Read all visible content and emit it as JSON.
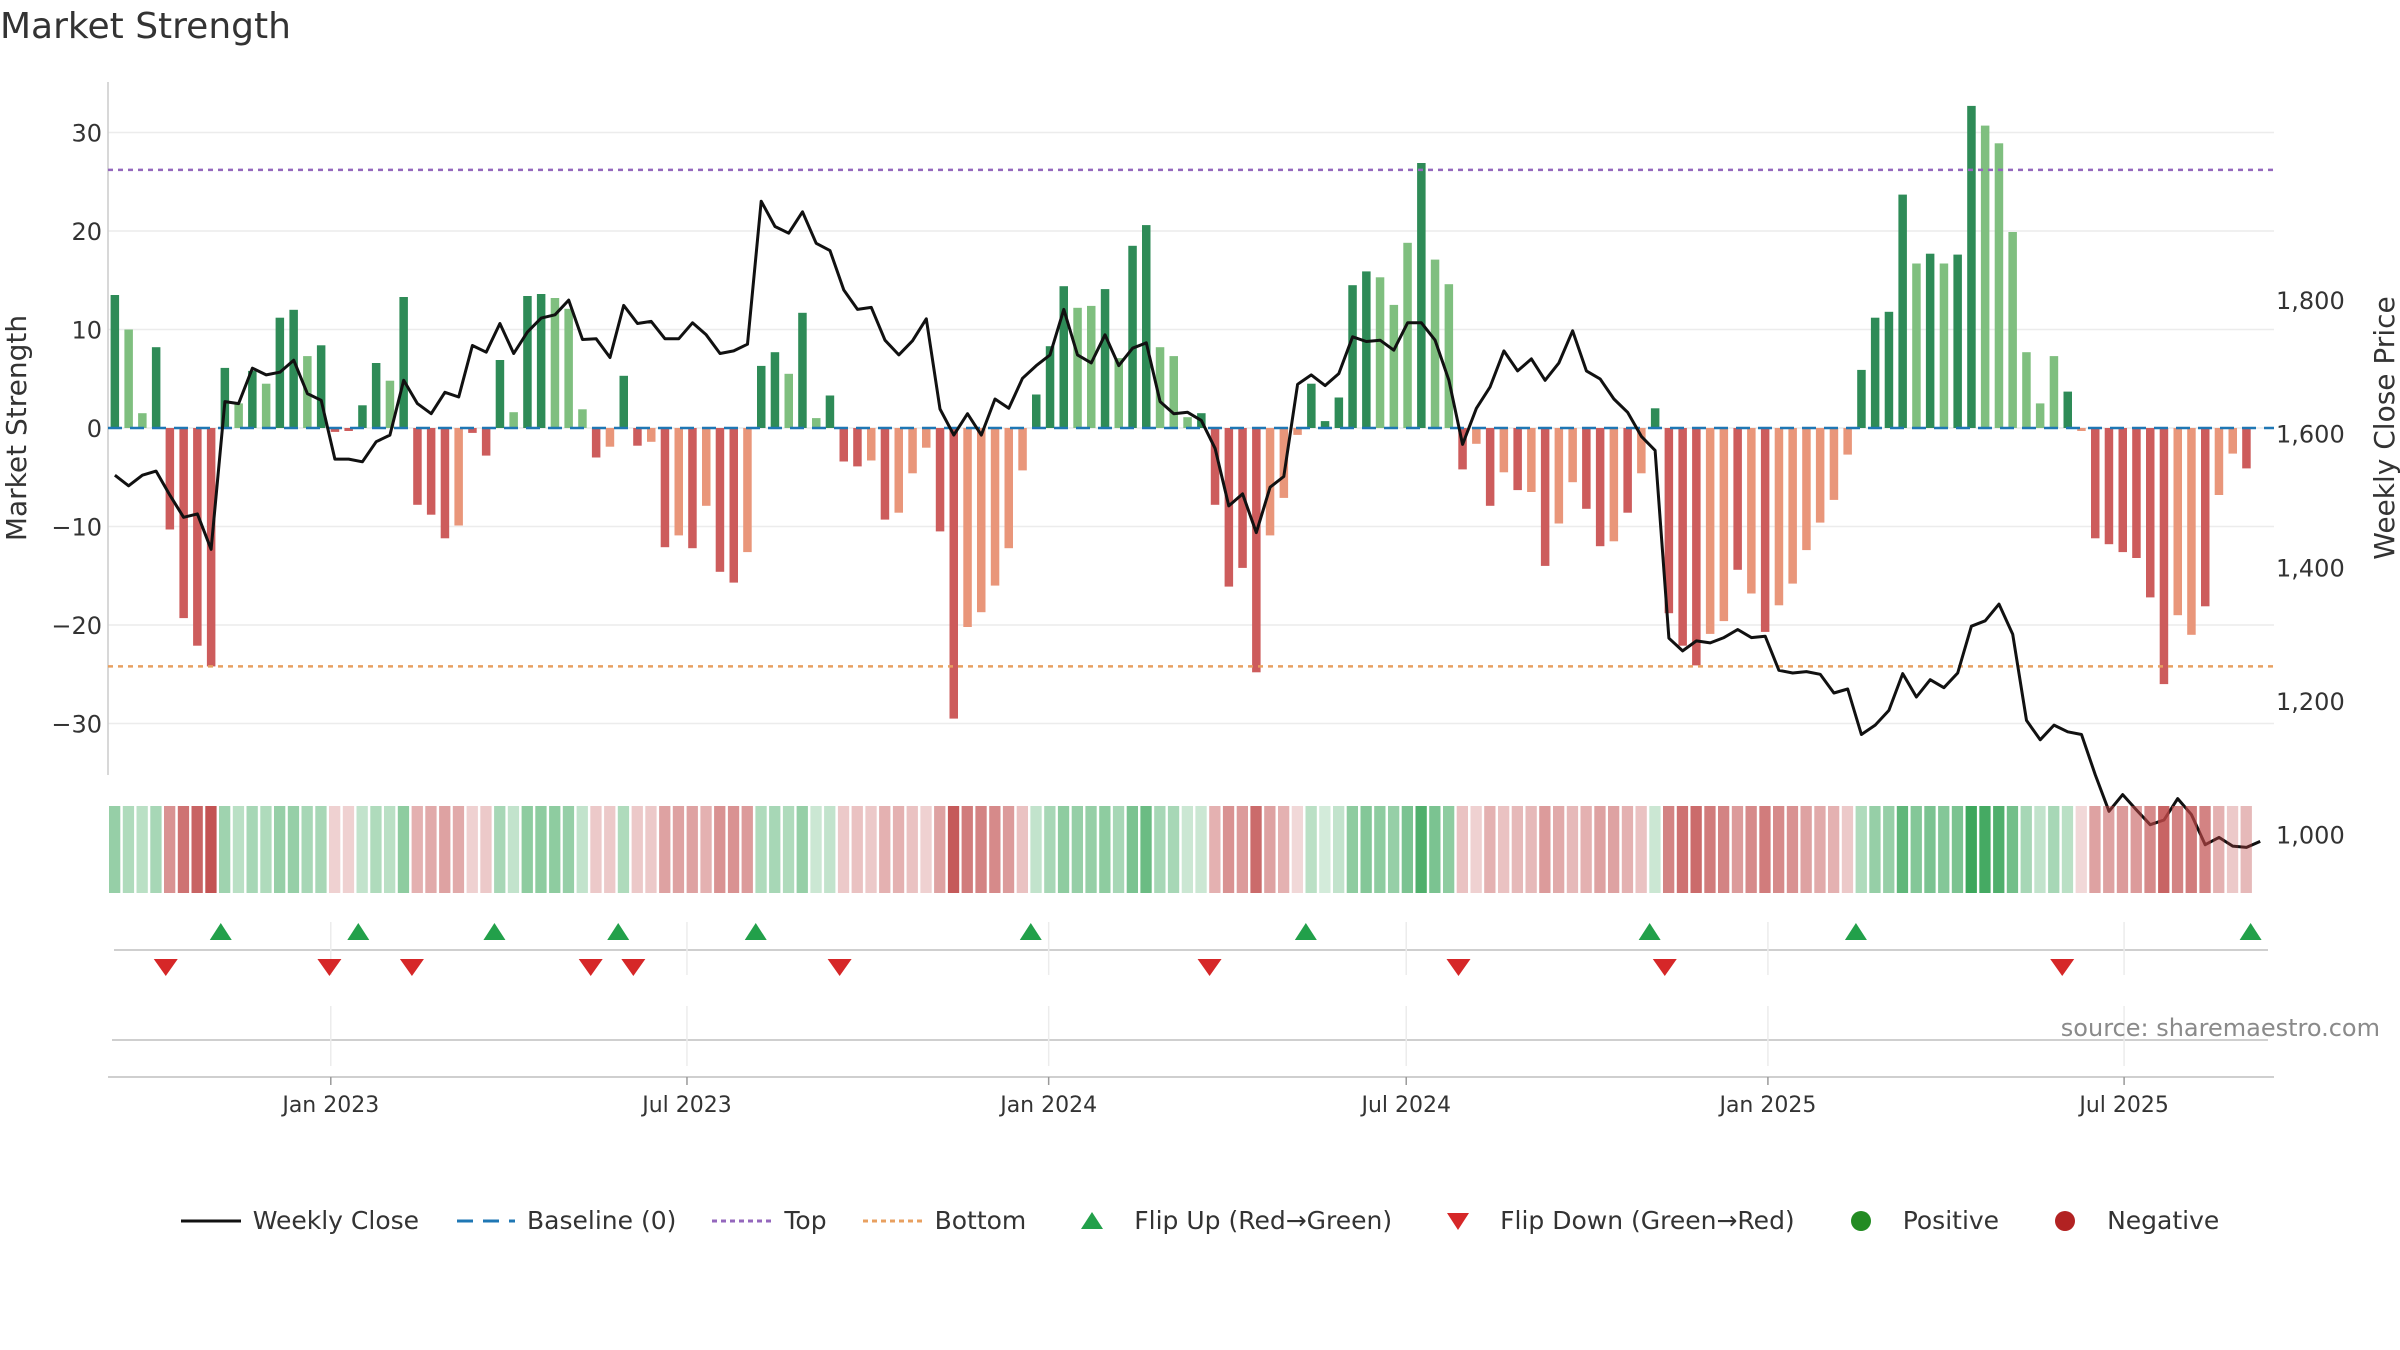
{
  "title": "Market Strength",
  "source": "source: sharemaestro.com",
  "colors": {
    "strong_green": "#2e8b57",
    "light_green": "#7fbf7f",
    "strong_red": "#cd5c5c",
    "light_red": "#e9967a",
    "top_line": "#9467bd",
    "bottom_line": "#e8a060",
    "baseline": "#1f77b4",
    "close_line": "#111111",
    "flip_up": "#22a04a",
    "flip_down": "#d62728",
    "positive": "#228b22",
    "negative": "#b22222"
  },
  "legend": [
    {
      "label": "Weekly Close",
      "kind": "line",
      "key": "close"
    },
    {
      "label": "Baseline (0)",
      "kind": "dash",
      "key": "baseline"
    },
    {
      "label": "Top",
      "kind": "dot",
      "key": "top"
    },
    {
      "label": "Bottom",
      "kind": "dot",
      "key": "bottom"
    },
    {
      "label": "Flip Up (Red→Green)",
      "kind": "tri-up",
      "key": "flip_up"
    },
    {
      "label": "Flip Down (Green→Red)",
      "kind": "tri-down",
      "key": "flip_down"
    },
    {
      "label": "Positive",
      "kind": "circle",
      "key": "positive"
    },
    {
      "label": "Negative",
      "kind": "circle",
      "key": "negative"
    }
  ],
  "chart_data": {
    "type": "bar",
    "title": "Market Strength",
    "ylabel": "Market Strength",
    "y2label": "Weekly Close Price",
    "ylim": [
      -35,
      36
    ],
    "y2lim": [
      940,
      1980
    ],
    "yticks": [
      30,
      20,
      10,
      0,
      -10,
      -20,
      -30
    ],
    "ytick_labels": [
      "30",
      "20",
      "10",
      "0",
      "−10",
      "−20",
      "−30"
    ],
    "y2ticks": [
      1800,
      1600,
      1400,
      1200,
      1000
    ],
    "y2tick_labels": [
      "1,800",
      "1,600",
      "1,400",
      "1,200",
      "1,000"
    ],
    "top_level": 26.2,
    "bottom_level": -24.2,
    "x_range_weeks": [
      0,
      157.5
    ],
    "x_ticks": [
      {
        "label": "Jan 2023",
        "week": 16.2
      },
      {
        "label": "Jul 2023",
        "week": 42.1
      },
      {
        "label": "Jan 2024",
        "week": 68.4
      },
      {
        "label": "Jul 2024",
        "week": 94.4
      },
      {
        "label": "Jan 2025",
        "week": 120.7
      },
      {
        "label": "Jul 2025",
        "week": 146.6
      }
    ],
    "strength": [
      13.5,
      10,
      1.5,
      8.2,
      -10.3,
      -19.3,
      -22.1,
      -24.2,
      6.1,
      2.5,
      5.8,
      4.5,
      11.2,
      12,
      7.3,
      8.4,
      -0.4,
      -0.3,
      2.3,
      6.6,
      4.8,
      13.3,
      -7.8,
      -8.8,
      -11.2,
      -9.9,
      -0.5,
      -2.8,
      6.9,
      1.6,
      13.4,
      13.6,
      13.2,
      12.1,
      1.9,
      -3,
      -1.9,
      5.3,
      -1.8,
      -1.4,
      -12.1,
      -10.9,
      -12.2,
      -7.9,
      -14.6,
      -15.7,
      -12.6,
      6.3,
      7.7,
      5.5,
      11.7,
      1,
      3.3,
      -3.4,
      -3.9,
      -3.3,
      -9.3,
      -8.6,
      -4.6,
      -2,
      -10.5,
      -29.5,
      -20.2,
      -18.7,
      -16,
      -12.2,
      -4.3,
      3.4,
      8.3,
      14.4,
      12.2,
      12.4,
      14.1,
      7.1,
      18.5,
      20.6,
      8.2,
      7.3,
      1.1,
      1.5,
      -7.8,
      -16.1,
      -14.2,
      -24.8,
      -10.9,
      -7.1,
      -0.7,
      4.5,
      0.7,
      3.1,
      14.5,
      15.9,
      15.3,
      12.5,
      18.8,
      26.9,
      17.1,
      14.6,
      -4.2,
      -1.6,
      -7.9,
      -4.5,
      -6.3,
      -6.5,
      -14,
      -9.7,
      -5.5,
      -8.2,
      -12,
      -11.5,
      -8.6,
      -4.6,
      2,
      -18.8,
      -22.1,
      -24.1,
      -20.9,
      -19.6,
      -14.4,
      -16.8,
      -20.7,
      -18,
      -15.8,
      -12.4,
      -9.6,
      -7.3,
      -2.7,
      5.9,
      11.2,
      11.8,
      23.7,
      16.7,
      17.7,
      16.7,
      17.6,
      32.7,
      30.7,
      28.9,
      19.9,
      7.7,
      2.5,
      7.3,
      3.7,
      -0.3,
      -11.2,
      -11.8,
      -12.6,
      -13.2,
      -17.2,
      -26,
      -19,
      -21,
      -18.1,
      -6.8,
      -2.6,
      -4.1
    ],
    "shade": [
      0,
      1,
      1,
      0,
      0,
      0,
      0,
      0,
      0,
      1,
      0,
      1,
      0,
      0,
      1,
      0,
      0,
      0,
      0,
      0,
      1,
      0,
      0,
      0,
      0,
      1,
      0,
      0,
      0,
      1,
      0,
      0,
      1,
      1,
      1,
      0,
      1,
      0,
      0,
      1,
      0,
      1,
      0,
      1,
      0,
      0,
      1,
      0,
      0,
      1,
      0,
      1,
      0,
      0,
      0,
      1,
      0,
      1,
      1,
      1,
      0,
      0,
      1,
      1,
      1,
      1,
      1,
      0,
      0,
      0,
      1,
      1,
      0,
      1,
      0,
      0,
      1,
      1,
      1,
      0,
      0,
      0,
      0,
      0,
      1,
      1,
      1,
      0,
      0,
      0,
      0,
      0,
      1,
      1,
      1,
      0,
      1,
      1,
      0,
      1,
      0,
      1,
      0,
      1,
      0,
      1,
      1,
      0,
      0,
      1,
      0,
      1,
      0,
      0,
      0,
      0,
      1,
      1,
      0,
      1,
      0,
      1,
      1,
      1,
      1,
      1,
      1,
      0,
      0,
      0,
      0,
      1,
      0,
      1,
      0,
      0,
      1,
      1,
      1,
      1,
      1,
      1,
      0,
      1,
      0,
      0,
      0,
      0,
      0,
      0,
      1,
      1,
      0,
      1,
      1,
      0
    ],
    "close": [
      1538,
      1522,
      1538,
      1544,
      1508,
      1475,
      1480,
      1427,
      1648,
      1645,
      1698,
      1688,
      1692,
      1710,
      1660,
      1650,
      1562,
      1562,
      1558,
      1588,
      1598,
      1680,
      1645,
      1630,
      1662,
      1655,
      1732,
      1722,
      1765,
      1720,
      1752,
      1773,
      1778,
      1800,
      1741,
      1742,
      1714,
      1792,
      1765,
      1768,
      1742,
      1742,
      1766,
      1748,
      1720,
      1724,
      1734,
      1948,
      1910,
      1900,
      1932,
      1885,
      1874,
      1815,
      1786,
      1789,
      1740,
      1718,
      1739,
      1772,
      1637,
      1598,
      1630,
      1598,
      1652,
      1638,
      1683,
      1702,
      1718,
      1786,
      1718,
      1706,
      1748,
      1702,
      1728,
      1736,
      1648,
      1630,
      1632,
      1620,
      1578,
      1492,
      1510,
      1452,
      1520,
      1536,
      1674,
      1688,
      1672,
      1690,
      1745,
      1738,
      1740,
      1725,
      1766,
      1766,
      1740,
      1680,
      1584,
      1638,
      1670,
      1724,
      1694,
      1712,
      1680,
      1706,
      1754,
      1694,
      1682,
      1652,
      1632,
      1596,
      1575,
      1294,
      1275,
      1290,
      1287,
      1295,
      1307,
      1295,
      1297,
      1246,
      1242,
      1244,
      1240,
      1212,
      1218,
      1150,
      1164,
      1186,
      1241,
      1206,
      1232,
      1220,
      1242,
      1312,
      1320,
      1345,
      1300,
      1171,
      1142,
      1164,
      1154,
      1150,
      1090,
      1035,
      1060,
      1037,
      1015,
      1022,
      1054,
      1030,
      985,
      996,
      983,
      981,
      990
    ],
    "flips_up_weeks": [
      8.2,
      18.2,
      28.1,
      37.1,
      47.1,
      67.1,
      87.1,
      112.1,
      127.1,
      155.8
    ],
    "flips_down_weeks": [
      4.2,
      16.1,
      22.1,
      35.1,
      38.2,
      53.2,
      80.1,
      98.2,
      113.2,
      142.1
    ],
    "strength_band_intensity": [
      0.45,
      0.3,
      0.25,
      0.35,
      0.55,
      0.75,
      0.85,
      0.95,
      0.4,
      0.25,
      0.35,
      0.3,
      0.45,
      0.45,
      0.35,
      0.35,
      0.15,
      0.15,
      0.2,
      0.3,
      0.25,
      0.5,
      0.35,
      0.4,
      0.45,
      0.4,
      0.15,
      0.2,
      0.35,
      0.2,
      0.5,
      0.5,
      0.5,
      0.45,
      0.2,
      0.2,
      0.2,
      0.3,
      0.2,
      0.2,
      0.45,
      0.45,
      0.45,
      0.35,
      0.55,
      0.55,
      0.5,
      0.3,
      0.35,
      0.3,
      0.45,
      0.15,
      0.2,
      0.2,
      0.25,
      0.2,
      0.35,
      0.35,
      0.25,
      0.15,
      0.45,
      0.9,
      0.7,
      0.65,
      0.6,
      0.5,
      0.25,
      0.2,
      0.35,
      0.5,
      0.45,
      0.45,
      0.5,
      0.35,
      0.6,
      0.7,
      0.35,
      0.35,
      0.15,
      0.15,
      0.35,
      0.55,
      0.5,
      0.8,
      0.45,
      0.35,
      0.1,
      0.25,
      0.1,
      0.2,
      0.5,
      0.55,
      0.5,
      0.45,
      0.6,
      0.85,
      0.6,
      0.5,
      0.25,
      0.15,
      0.35,
      0.25,
      0.3,
      0.3,
      0.5,
      0.4,
      0.3,
      0.35,
      0.45,
      0.45,
      0.35,
      0.25,
      0.15,
      0.65,
      0.75,
      0.8,
      0.7,
      0.65,
      0.5,
      0.6,
      0.7,
      0.6,
      0.55,
      0.45,
      0.4,
      0.35,
      0.2,
      0.3,
      0.45,
      0.45,
      0.75,
      0.55,
      0.6,
      0.55,
      0.6,
      0.95,
      0.9,
      0.85,
      0.65,
      0.35,
      0.2,
      0.35,
      0.25,
      0.1,
      0.45,
      0.45,
      0.5,
      0.5,
      0.6,
      0.85,
      0.65,
      0.7,
      0.65,
      0.35,
      0.2,
      0.3
    ]
  }
}
